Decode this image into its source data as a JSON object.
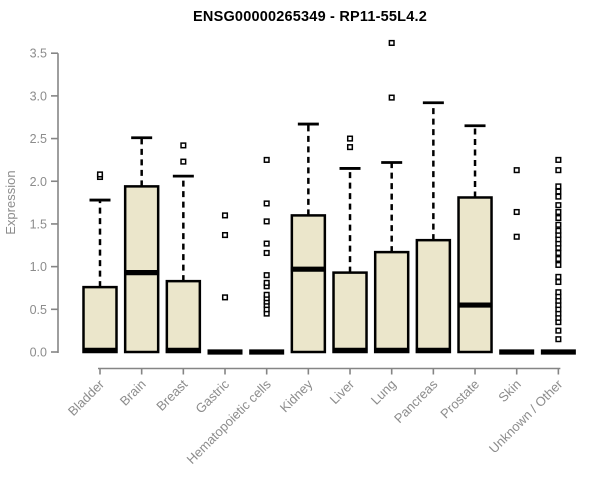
{
  "chart_data": {
    "type": "boxplot",
    "title": "ENSG00000265349 - RP11-55L4.2",
    "xlabel": "",
    "ylabel": "Expression",
    "ylim": [
      0.0,
      3.5
    ],
    "yticks": [
      0.0,
      0.5,
      1.0,
      1.5,
      2.0,
      2.5,
      3.0,
      3.5
    ],
    "grid": false,
    "legend": false,
    "categories": [
      "Bladder",
      "Brain",
      "Breast",
      "Gastric",
      "Hematopoietic cells",
      "Kidney",
      "Liver",
      "Lung",
      "Pancreas",
      "Prostate",
      "Skin",
      "Unknown / Other"
    ],
    "series": [
      {
        "label": "Bladder",
        "q1": 0.0,
        "median": 0.02,
        "q3": 0.76,
        "whisker_low": 0.0,
        "whisker_high": 1.78,
        "outliers": [
          2.05,
          2.08
        ]
      },
      {
        "label": "Brain",
        "q1": 0.0,
        "median": 0.93,
        "q3": 1.94,
        "whisker_low": 0.0,
        "whisker_high": 2.51,
        "outliers": []
      },
      {
        "label": "Breast",
        "q1": 0.0,
        "median": 0.02,
        "q3": 0.83,
        "whisker_low": 0.0,
        "whisker_high": 2.06,
        "outliers": [
          2.23,
          2.42
        ]
      },
      {
        "label": "Gastric",
        "q1": 0.0,
        "median": 0.0,
        "q3": 0.0,
        "whisker_low": 0.0,
        "whisker_high": 0.0,
        "outliers": [
          0.64,
          1.37,
          1.6
        ]
      },
      {
        "label": "Hematopoietic cells",
        "q1": 0.0,
        "median": 0.0,
        "q3": 0.0,
        "whisker_low": 0.0,
        "whisker_high": 0.0,
        "outliers": [
          0.45,
          0.5,
          0.55,
          0.59,
          0.63,
          0.67,
          0.77,
          0.81,
          0.9,
          1.16,
          1.27,
          1.53,
          1.74,
          2.25
        ]
      },
      {
        "label": "Kidney",
        "q1": 0.0,
        "median": 0.97,
        "q3": 1.6,
        "whisker_low": 0.0,
        "whisker_high": 2.67,
        "outliers": []
      },
      {
        "label": "Liver",
        "q1": 0.0,
        "median": 0.02,
        "q3": 0.93,
        "whisker_low": 0.0,
        "whisker_high": 2.15,
        "outliers": [
          2.4,
          2.5
        ]
      },
      {
        "label": "Lung",
        "q1": 0.0,
        "median": 0.02,
        "q3": 1.17,
        "whisker_low": 0.0,
        "whisker_high": 2.22,
        "outliers": [
          2.98,
          3.62
        ]
      },
      {
        "label": "Pancreas",
        "q1": 0.0,
        "median": 0.02,
        "q3": 1.31,
        "whisker_low": 0.0,
        "whisker_high": 2.92,
        "outliers": []
      },
      {
        "label": "Prostate",
        "q1": 0.0,
        "median": 0.55,
        "q3": 1.81,
        "whisker_low": 0.0,
        "whisker_high": 2.65,
        "outliers": []
      },
      {
        "label": "Skin",
        "q1": 0.0,
        "median": 0.0,
        "q3": 0.0,
        "whisker_low": 0.0,
        "whisker_high": 0.0,
        "outliers": [
          1.35,
          1.64,
          2.13
        ]
      },
      {
        "label": "Unknown / Other",
        "q1": 0.0,
        "median": 0.0,
        "q3": 0.0,
        "whisker_low": 0.0,
        "whisker_high": 0.0,
        "outliers": [
          0.15,
          0.25,
          0.35,
          0.4,
          0.45,
          0.5,
          0.55,
          0.6,
          0.65,
          0.7,
          0.82,
          0.88,
          1.02,
          1.09,
          1.16,
          1.22,
          1.27,
          1.32,
          1.37,
          1.42,
          1.49,
          1.57,
          1.64,
          1.72,
          1.82,
          1.88,
          1.94,
          2.13,
          2.25
        ]
      }
    ],
    "colors": {
      "box_fill": "#EBE6CB",
      "box_stroke": "#000000",
      "median": "#000000",
      "whisker": "#000000",
      "outlier_stroke": "#000000",
      "outlier_fill": "#ffffff",
      "axis": "#858585",
      "tick_label": "#8C8C8C",
      "title": "#000000",
      "background": "#ffffff"
    }
  }
}
